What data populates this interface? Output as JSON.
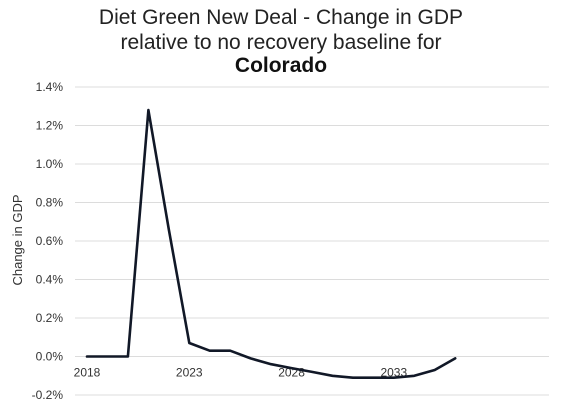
{
  "chart_data": {
    "type": "line",
    "title_lines": [
      "Diet Green New Deal - Change in GDP",
      "relative to no recovery baseline for"
    ],
    "title_bold": "Colorado",
    "xlabel": "",
    "ylabel": "Change in GDP",
    "ylim": [
      -0.2,
      1.4
    ],
    "y_ticks": [
      "-0.2%",
      "0.0%",
      "0.2%",
      "0.4%",
      "0.6%",
      "0.8%",
      "1.0%",
      "1.2%",
      "1.4%"
    ],
    "xlim": [
      2018,
      2040
    ],
    "x_ticks": [
      "2018",
      "2023",
      "2028",
      "2033"
    ],
    "grid": true,
    "legend": "none",
    "line_color": "#111827",
    "series": [
      {
        "x": [
          2018,
          2019,
          2020,
          2021,
          2022,
          2023,
          2024,
          2025,
          2026,
          2027,
          2028,
          2029,
          2030,
          2031,
          2032,
          2033,
          2034,
          2035,
          2036
        ],
        "values": [
          0.0,
          0.0,
          0.0,
          1.28,
          0.66,
          0.07,
          0.03,
          0.03,
          -0.01,
          -0.04,
          -0.06,
          -0.08,
          -0.1,
          -0.11,
          -0.11,
          -0.11,
          -0.1,
          -0.07,
          -0.01
        ]
      }
    ]
  }
}
